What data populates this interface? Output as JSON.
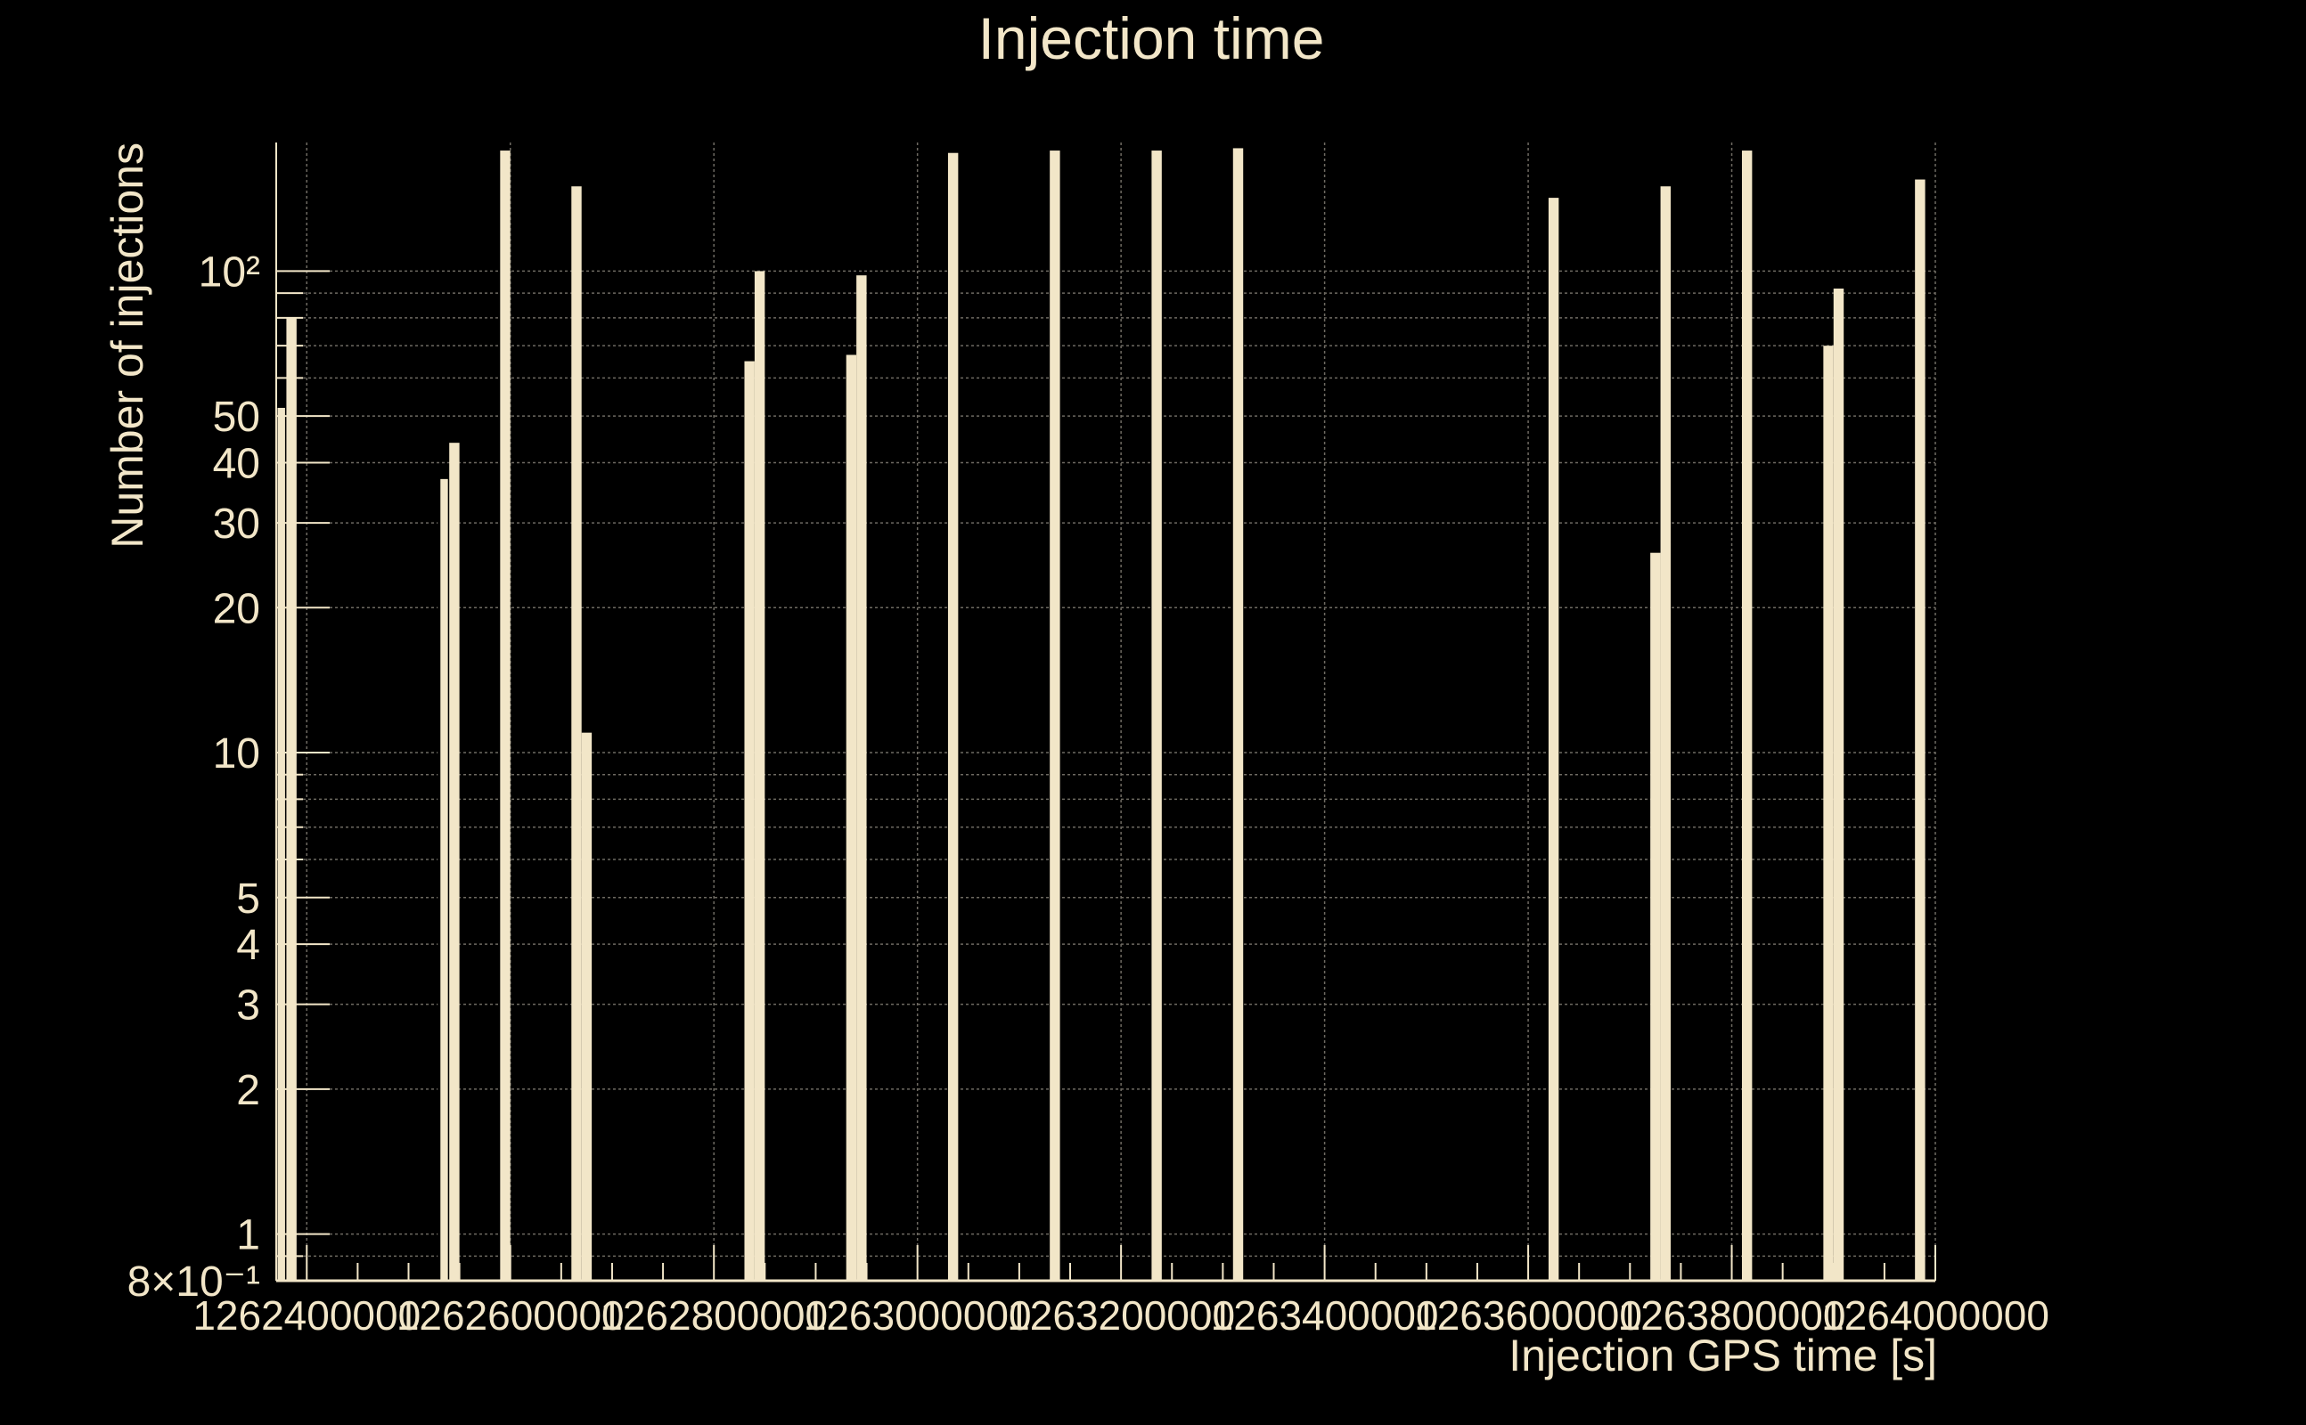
{
  "chart_data": {
    "type": "bar",
    "title": "Injection time",
    "xlabel": "Injection GPS time [s]",
    "ylabel": "Number of injections",
    "yscale": "log",
    "ylim": [
      0.8,
      185
    ],
    "xlim": [
      1262370000,
      1264000000
    ],
    "grid": true,
    "bin_width": 10000,
    "x_ticks": [
      {
        "value": 1262400000,
        "label": "1262400000"
      },
      {
        "value": 1262600000,
        "label": "1262600000"
      },
      {
        "value": 1262800000,
        "label": "1262800000"
      },
      {
        "value": 1263000000,
        "label": "1263000000"
      },
      {
        "value": 1263200000,
        "label": "1263200000"
      },
      {
        "value": 1263400000,
        "label": "1263400000"
      },
      {
        "value": 1263600000,
        "label": "1263600000"
      },
      {
        "value": 1263800000,
        "label": "1263800000"
      },
      {
        "value": 1264000000,
        "label": "1264000000"
      }
    ],
    "y_ticks": [
      {
        "value": 0.8,
        "label": "8×10⁻¹"
      },
      {
        "value": 1,
        "label": "1"
      },
      {
        "value": 2,
        "label": "2"
      },
      {
        "value": 3,
        "label": "3"
      },
      {
        "value": 4,
        "label": "4"
      },
      {
        "value": 5,
        "label": "5"
      },
      {
        "value": 10,
        "label": "10"
      },
      {
        "value": 20,
        "label": "20"
      },
      {
        "value": 30,
        "label": "30"
      },
      {
        "value": 40,
        "label": "40"
      },
      {
        "value": 50,
        "label": "50"
      },
      {
        "value": 100,
        "label": "10²"
      }
    ],
    "bins": [
      {
        "x": 1262370000,
        "value": 52,
        "outline": 60
      },
      {
        "x": 1262380000,
        "value": 80,
        "outline": 80
      },
      {
        "x": 1262530000,
        "value": 37,
        "outline": 38
      },
      {
        "x": 1262540000,
        "value": 44,
        "outline": 44
      },
      {
        "x": 1262590000,
        "value": 178,
        "outline": 178
      },
      {
        "x": 1262660000,
        "value": 150,
        "outline": 150
      },
      {
        "x": 1262670000,
        "value": 11,
        "outline": 11
      },
      {
        "x": 1262830000,
        "value": 65,
        "outline": 65
      },
      {
        "x": 1262840000,
        "value": 100,
        "outline": 100
      },
      {
        "x": 1262930000,
        "value": 67,
        "outline": 67
      },
      {
        "x": 1262940000,
        "value": 98,
        "outline": 98
      },
      {
        "x": 1263030000,
        "value": 176,
        "outline": 176
      },
      {
        "x": 1263130000,
        "value": 178,
        "outline": 178
      },
      {
        "x": 1263230000,
        "value": 178,
        "outline": 178
      },
      {
        "x": 1263310000,
        "value": 180,
        "outline": 180
      },
      {
        "x": 1263620000,
        "value": 142,
        "outline": 142
      },
      {
        "x": 1263720000,
        "value": 26,
        "outline": 26
      },
      {
        "x": 1263730000,
        "value": 150,
        "outline": 150
      },
      {
        "x": 1263810000,
        "value": 178,
        "outline": 178
      },
      {
        "x": 1263890000,
        "value": 70,
        "outline": 70
      },
      {
        "x": 1263900000,
        "value": 92,
        "outline": 92
      },
      {
        "x": 1263980000,
        "value": 155,
        "outline": 155
      }
    ],
    "colors": {
      "background": "#000000",
      "fill": "#f2e6c8",
      "text": "#f2e6c8",
      "grid": "#6e6a62",
      "outline": "#000000"
    }
  }
}
